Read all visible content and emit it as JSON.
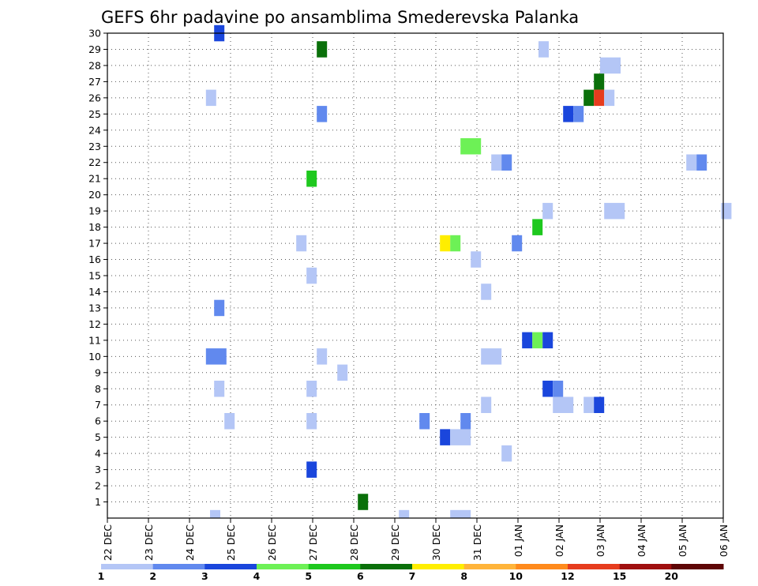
{
  "chart_data": {
    "type": "heatmap",
    "title": "GEFS 6hr padavine po ansamblima Smederevska Palanka",
    "xlabel": "",
    "ylabel": "",
    "x_ticks": [
      "22 DEC",
      "23 DEC",
      "24 DEC",
      "25 DEC",
      "26 DEC",
      "27 DEC",
      "28 DEC",
      "29 DEC",
      "30 DEC",
      "31 DEC",
      "01 JAN",
      "02 JAN",
      "03 JAN",
      "04 JAN",
      "05 JAN",
      "06 JAN"
    ],
    "y_ticks": [
      "1",
      "2",
      "3",
      "4",
      "5",
      "6",
      "7",
      "8",
      "9",
      "10",
      "11",
      "12",
      "13",
      "14",
      "15",
      "16",
      "17",
      "18",
      "19",
      "20",
      "21",
      "22",
      "23",
      "24",
      "25",
      "26",
      "27",
      "28",
      "29",
      "30"
    ],
    "xlim_days": [
      0,
      15
    ],
    "ylim": [
      0,
      30
    ],
    "grid": true,
    "colorbar": {
      "labels": [
        "1",
        "2",
        "3",
        "4",
        "5",
        "6",
        "7",
        "8",
        "10",
        "12",
        "15",
        "20"
      ],
      "colors": [
        "#b4c6f6",
        "#6189ee",
        "#1a46dc",
        "#6df156",
        "#1ec81e",
        "#0a700a",
        "#ffee00",
        "#ffb43a",
        "#ff8a1c",
        "#e63c1e",
        "#a01010",
        "#5e0606"
      ]
    },
    "cells": [
      {
        "x": 2.5,
        "y": 0,
        "w": 1,
        "value": 1
      },
      {
        "x": 2.6,
        "y": 30,
        "w": 1,
        "value": 3
      },
      {
        "x": 5.1,
        "y": 29,
        "w": 1,
        "value": 6
      },
      {
        "x": 10.5,
        "y": 29,
        "w": 1,
        "value": 1
      },
      {
        "x": 12.0,
        "y": 28,
        "w": 2,
        "value": 1
      },
      {
        "x": 11.85,
        "y": 27,
        "w": 1,
        "value": 6
      },
      {
        "x": 2.4,
        "y": 26,
        "w": 1,
        "value": 1
      },
      {
        "x": 11.6,
        "y": 26,
        "w": 1,
        "value": 6
      },
      {
        "x": 11.85,
        "y": 26,
        "w": 1,
        "value": 12
      },
      {
        "x": 12.1,
        "y": 26,
        "w": 1,
        "value": 1
      },
      {
        "x": 5.1,
        "y": 25,
        "w": 1,
        "value": 2
      },
      {
        "x": 11.1,
        "y": 25,
        "w": 1,
        "value": 3
      },
      {
        "x": 11.35,
        "y": 25,
        "w": 1,
        "value": 2
      },
      {
        "x": 8.6,
        "y": 23,
        "w": 2,
        "value": 4
      },
      {
        "x": 9.35,
        "y": 22,
        "w": 1,
        "value": 1
      },
      {
        "x": 9.6,
        "y": 22,
        "w": 1,
        "value": 2
      },
      {
        "x": 14.1,
        "y": 22,
        "w": 1,
        "value": 1
      },
      {
        "x": 14.35,
        "y": 22,
        "w": 1,
        "value": 2
      },
      {
        "x": 4.85,
        "y": 21,
        "w": 1,
        "value": 5
      },
      {
        "x": 10.6,
        "y": 19,
        "w": 1,
        "value": 1
      },
      {
        "x": 12.1,
        "y": 19,
        "w": 2,
        "value": 1
      },
      {
        "x": 14.95,
        "y": 19,
        "w": 1,
        "value": 1
      },
      {
        "x": 10.35,
        "y": 18,
        "w": 1,
        "value": 5
      },
      {
        "x": 4.6,
        "y": 17,
        "w": 1,
        "value": 1
      },
      {
        "x": 8.1,
        "y": 17,
        "w": 1,
        "value": 7
      },
      {
        "x": 8.35,
        "y": 17,
        "w": 1,
        "value": 4
      },
      {
        "x": 9.85,
        "y": 17,
        "w": 1,
        "value": 2
      },
      {
        "x": 8.85,
        "y": 16,
        "w": 1,
        "value": 1
      },
      {
        "x": 4.85,
        "y": 15,
        "w": 1,
        "value": 1
      },
      {
        "x": 9.1,
        "y": 14,
        "w": 1,
        "value": 1
      },
      {
        "x": 2.6,
        "y": 13,
        "w": 1,
        "value": 2
      },
      {
        "x": 10.1,
        "y": 11,
        "w": 1,
        "value": 3
      },
      {
        "x": 10.35,
        "y": 11,
        "w": 1,
        "value": 4
      },
      {
        "x": 10.6,
        "y": 11,
        "w": 1,
        "value": 3
      },
      {
        "x": 2.4,
        "y": 10,
        "w": 2,
        "value": 2
      },
      {
        "x": 5.1,
        "y": 10,
        "w": 1,
        "value": 1
      },
      {
        "x": 9.1,
        "y": 10,
        "w": 2,
        "value": 1
      },
      {
        "x": 5.6,
        "y": 9,
        "w": 1,
        "value": 1
      },
      {
        "x": 2.6,
        "y": 8,
        "w": 1,
        "value": 1
      },
      {
        "x": 4.85,
        "y": 8,
        "w": 1,
        "value": 1
      },
      {
        "x": 10.6,
        "y": 8,
        "w": 1,
        "value": 3
      },
      {
        "x": 10.85,
        "y": 8,
        "w": 1,
        "value": 2
      },
      {
        "x": 9.1,
        "y": 7,
        "w": 1,
        "value": 1
      },
      {
        "x": 10.85,
        "y": 7,
        "w": 2,
        "value": 1
      },
      {
        "x": 11.6,
        "y": 7,
        "w": 1,
        "value": 1
      },
      {
        "x": 11.85,
        "y": 7,
        "w": 1,
        "value": 3
      },
      {
        "x": 2.85,
        "y": 6,
        "w": 1,
        "value": 1
      },
      {
        "x": 4.85,
        "y": 6,
        "w": 1,
        "value": 1
      },
      {
        "x": 7.6,
        "y": 6,
        "w": 1,
        "value": 2
      },
      {
        "x": 8.6,
        "y": 6,
        "w": 1,
        "value": 2
      },
      {
        "x": 8.1,
        "y": 5,
        "w": 1,
        "value": 3
      },
      {
        "x": 8.35,
        "y": 5,
        "w": 2,
        "value": 1
      },
      {
        "x": 9.6,
        "y": 4,
        "w": 1,
        "value": 1
      },
      {
        "x": 4.85,
        "y": 3,
        "w": 1,
        "value": 3
      },
      {
        "x": 6.1,
        "y": 1,
        "w": 1,
        "value": 6
      },
      {
        "x": 7.1,
        "y": 0,
        "w": 1,
        "value": 1
      },
      {
        "x": 8.35,
        "y": 0,
        "w": 2,
        "value": 1
      }
    ]
  }
}
